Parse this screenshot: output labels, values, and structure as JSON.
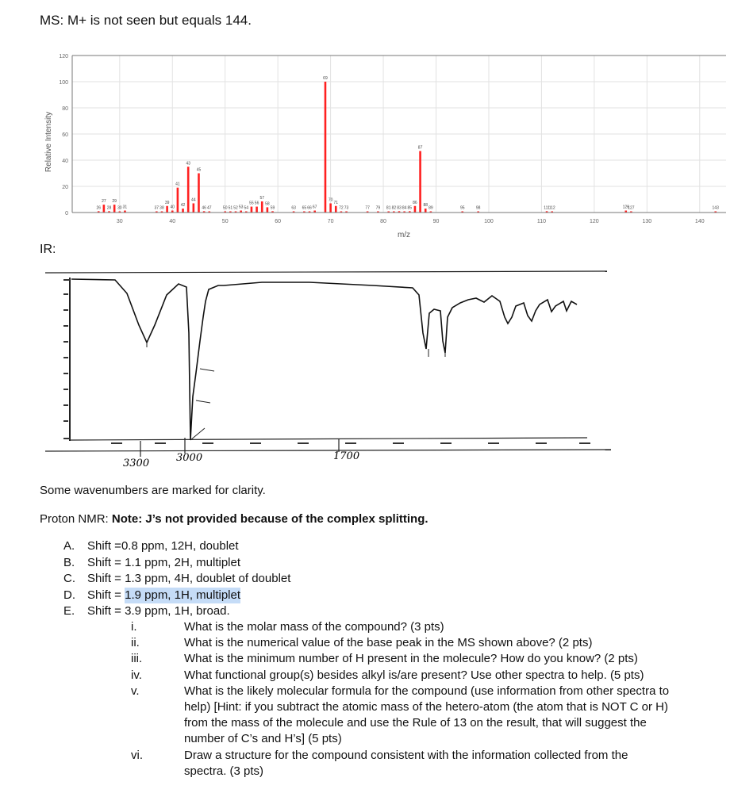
{
  "ms_heading": "MS: M+ is not seen but equals 144.",
  "chart_data": {
    "type": "bar",
    "title": "",
    "xlabel": "m/z",
    "ylabel": "Relative Intensity",
    "xlim": [
      21,
      145
    ],
    "ylim": [
      0,
      120
    ],
    "xticks": [
      30,
      40,
      50,
      60,
      70,
      80,
      90,
      100,
      110,
      120,
      130,
      140
    ],
    "yticks": [
      0,
      20,
      40,
      60,
      80,
      100,
      120
    ],
    "grid": true,
    "bar_color": "#ff2020",
    "peaks": [
      [
        26,
        1
      ],
      [
        27,
        6
      ],
      [
        28,
        1
      ],
      [
        29,
        6
      ],
      [
        30,
        0.5
      ],
      [
        31,
        1.5
      ],
      [
        37,
        0.5
      ],
      [
        38,
        0.5
      ],
      [
        39,
        5
      ],
      [
        40,
        1.5
      ],
      [
        41,
        19
      ],
      [
        42,
        3
      ],
      [
        43,
        35
      ],
      [
        44,
        7
      ],
      [
        45,
        30
      ],
      [
        46,
        1
      ],
      [
        47,
        0.5
      ],
      [
        50,
        0.5
      ],
      [
        51,
        0.5
      ],
      [
        52,
        0.5
      ],
      [
        53,
        1.5
      ],
      [
        54,
        0.5
      ],
      [
        55,
        4.5
      ],
      [
        56,
        4.5
      ],
      [
        57,
        8.5
      ],
      [
        58,
        4
      ],
      [
        59,
        1
      ],
      [
        63,
        0.5
      ],
      [
        65,
        0.5
      ],
      [
        66,
        0.5
      ],
      [
        67,
        1.5
      ],
      [
        69,
        100
      ],
      [
        70,
        7
      ],
      [
        71,
        5
      ],
      [
        72,
        0.5
      ],
      [
        73,
        0.5
      ],
      [
        77,
        0.5
      ],
      [
        79,
        0.5
      ],
      [
        81,
        0.5
      ],
      [
        82,
        0.5
      ],
      [
        83,
        1
      ],
      [
        84,
        0.5
      ],
      [
        85,
        1
      ],
      [
        86,
        5
      ],
      [
        87,
        47
      ],
      [
        88,
        3
      ],
      [
        89,
        0.5
      ],
      [
        95,
        0.5
      ],
      [
        98,
        0.5
      ],
      [
        111,
        1
      ],
      [
        112,
        0.5
      ],
      [
        126,
        1.5
      ],
      [
        127,
        0.5
      ],
      [
        143,
        0.5
      ]
    ]
  },
  "ir": {
    "heading": "IR:",
    "marked_wavenumbers": [
      "3300",
      "3000",
      "1700"
    ],
    "note": "Some wavenumbers are marked for clarity."
  },
  "nmr": {
    "prefix": "Proton NMR: ",
    "note_bold": "Note: J’s not provided because of the complex splitting.",
    "signals": [
      {
        "letter": "A.",
        "text": "Shift =0.8 ppm, 12H, doublet"
      },
      {
        "letter": "B.",
        "text": "Shift = 1.1 ppm, 2H, multiplet"
      },
      {
        "letter": "C.",
        "text": "Shift = 1.3 ppm, 4H, doublet of doublet"
      },
      {
        "letter": "D.",
        "text_before": "Shift = ",
        "text_highlighted": "1.9 ppm, 1H, multiplet"
      },
      {
        "letter": "E.",
        "text": "Shift = 3.9 ppm, 1H, broad."
      }
    ]
  },
  "questions": [
    {
      "num": "i.",
      "text": "What is the molar mass of the compound? (3 pts)"
    },
    {
      "num": "ii.",
      "text": "What is the numerical value of the base peak in the MS shown above? (2 pts)"
    },
    {
      "num": "iii.",
      "text": "What is the minimum number of H present in the molecule? How do you know? (2 pts)"
    },
    {
      "num": "iv.",
      "text": "What functional group(s) besides alkyl is/are present? Use other spectra to help. (5 pts)"
    },
    {
      "num": "v.",
      "text": "What is the likely molecular formula for the compound (use information from other spectra to help) [Hint: if you subtract the atomic mass of the hetero-atom (the atom that is NOT C or H) from the mass of the molecule and use the Rule of 13 on the result, that will suggest the number of C’s and H’s] (5 pts)"
    },
    {
      "num": "vi.",
      "text": "Draw a structure for the compound consistent with the information collected from the spectra. (3 pts)"
    }
  ]
}
